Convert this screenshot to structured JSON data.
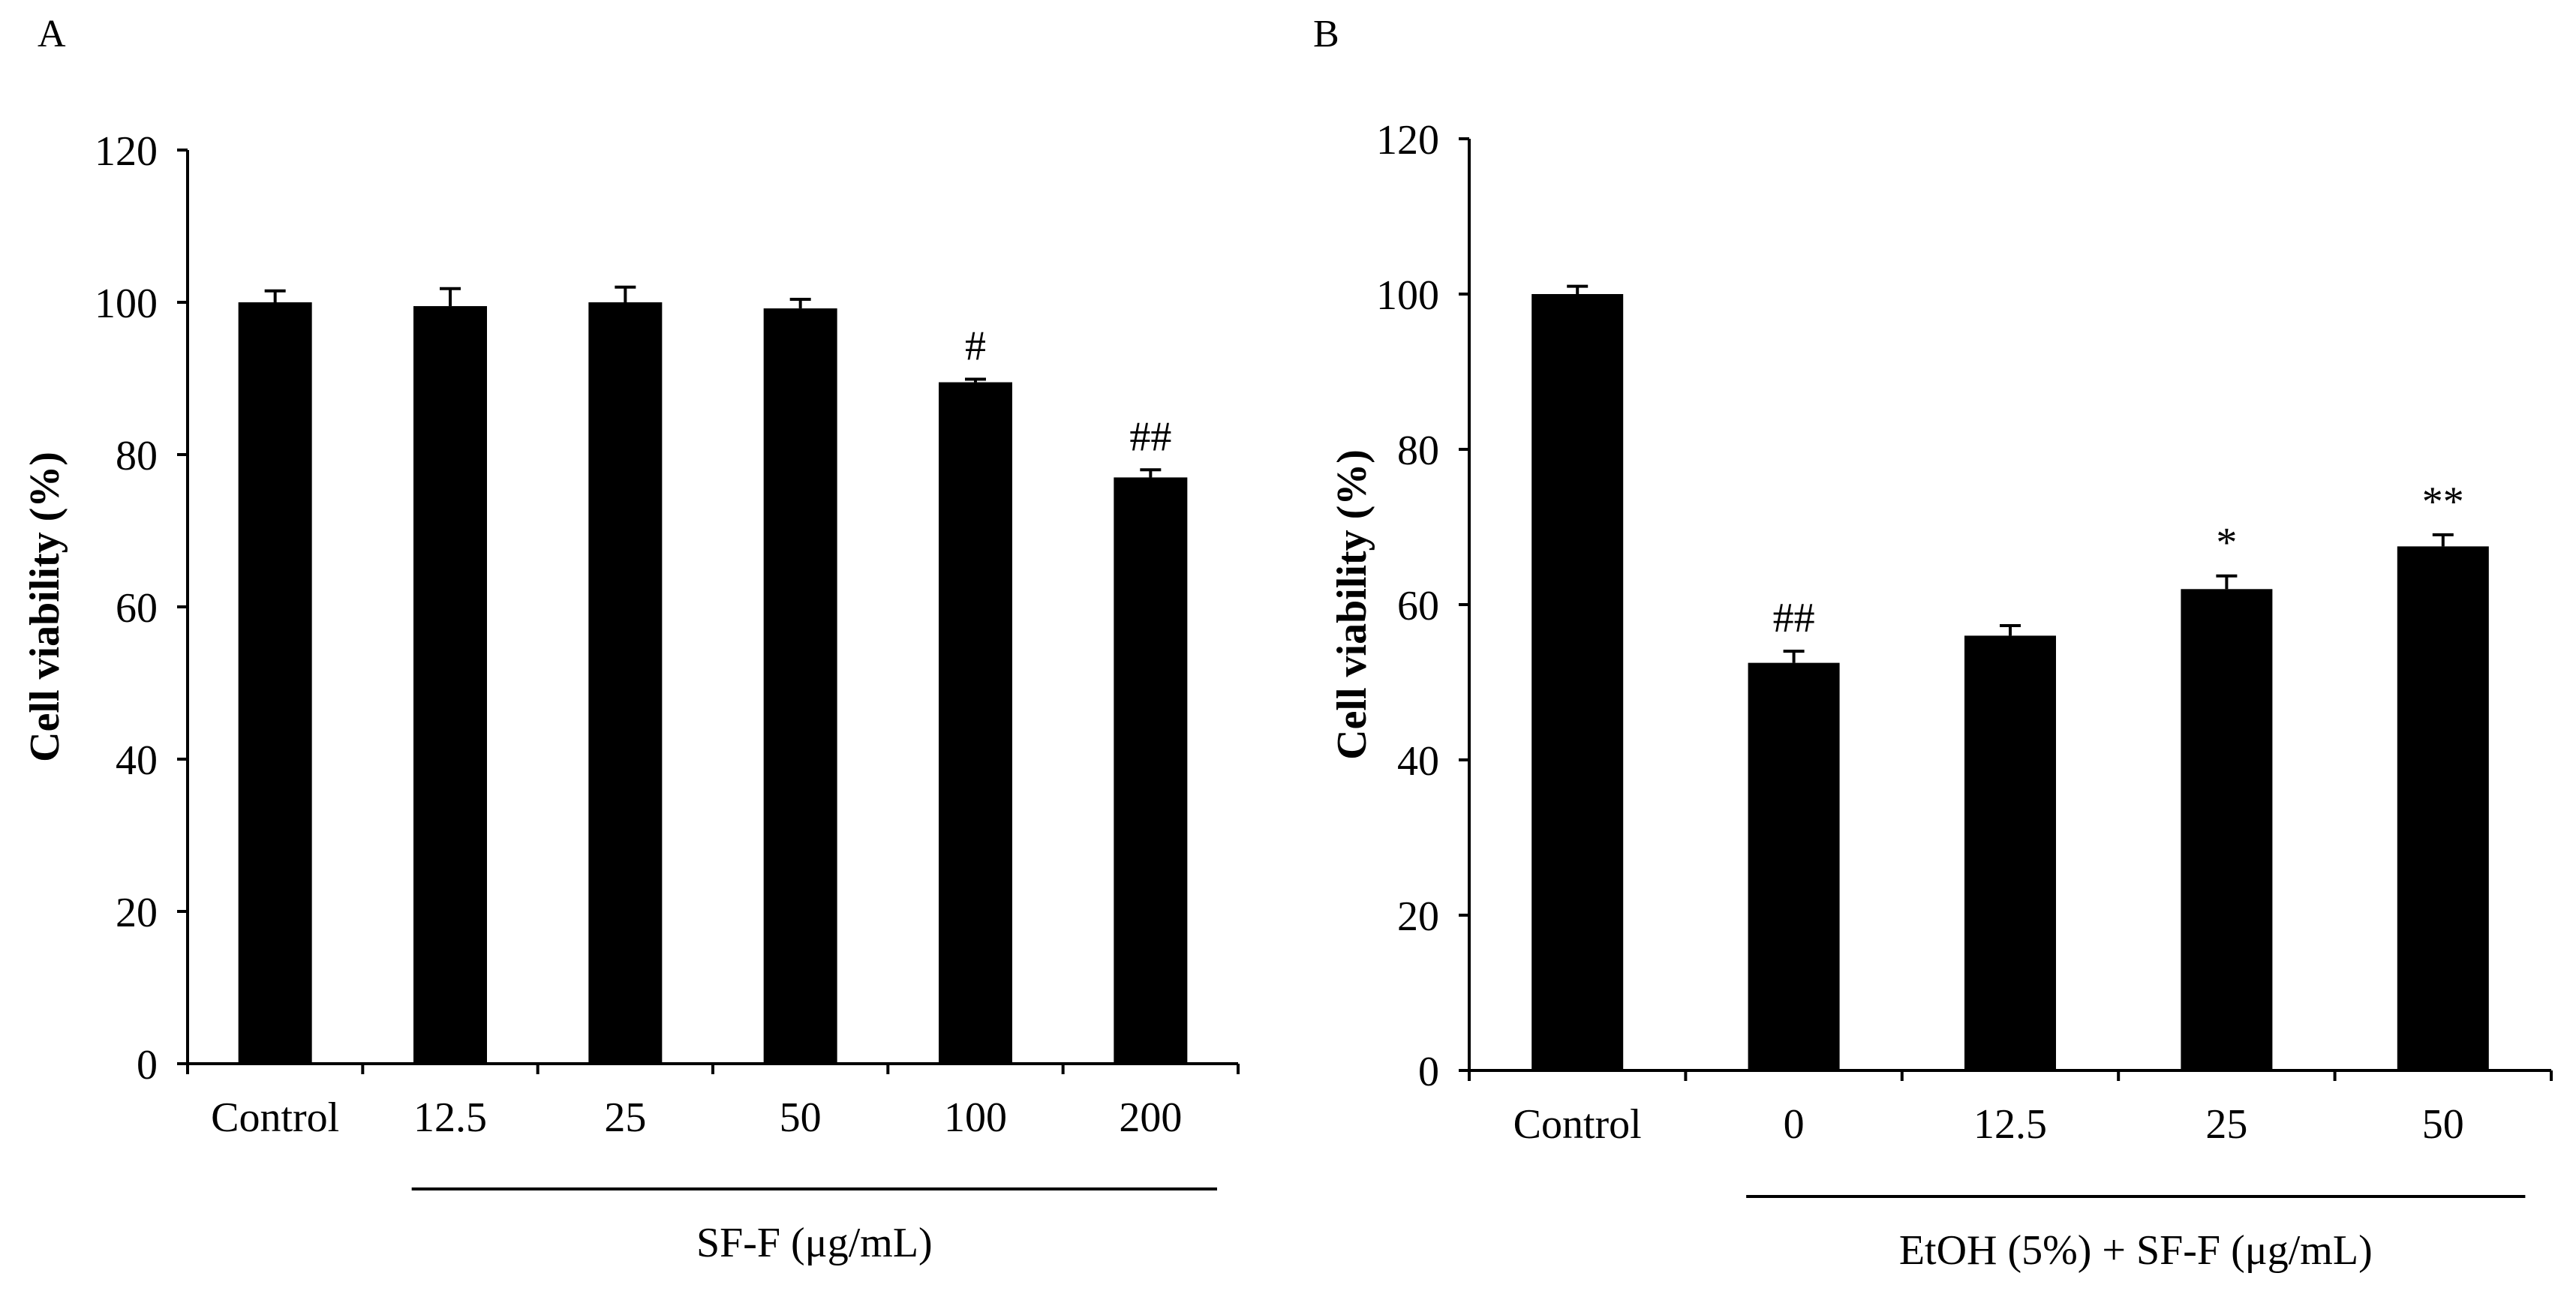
{
  "chart_data": [
    {
      "panel": "A",
      "type": "bar",
      "categories": [
        "Control",
        "12.5",
        "25",
        "50",
        "100",
        "200"
      ],
      "values": [
        100,
        99.5,
        100,
        99.2,
        89.5,
        77
      ],
      "errors": [
        1.5,
        2.3,
        2.0,
        1.2,
        0.4,
        1.0
      ],
      "annotations": [
        "",
        "",
        "",
        "",
        "#",
        "##"
      ],
      "ylabel": "Cell viability (%)",
      "group_label": "SF-F (μg/mL)",
      "group_span": [
        1,
        5
      ],
      "ylim": [
        0,
        120
      ],
      "yticks": [
        0,
        20,
        40,
        60,
        80,
        100,
        120
      ],
      "bar_color": "#000000"
    },
    {
      "panel": "B",
      "type": "bar",
      "categories": [
        "Control",
        "0",
        "12.5",
        "25",
        "50"
      ],
      "values": [
        100,
        52.5,
        56,
        62,
        67.5
      ],
      "errors": [
        1.0,
        1.5,
        1.3,
        1.7,
        1.5
      ],
      "annotations": [
        "",
        "##",
        "",
        "*",
        "**"
      ],
      "ylabel": "Cell viability (%)",
      "group_label": "EtOH (5%) + SF-F (μg/mL)",
      "group_span": [
        1,
        4
      ],
      "ylim": [
        0,
        120
      ],
      "yticks": [
        0,
        20,
        40,
        60,
        80,
        100,
        120
      ],
      "bar_color": "#000000"
    }
  ]
}
